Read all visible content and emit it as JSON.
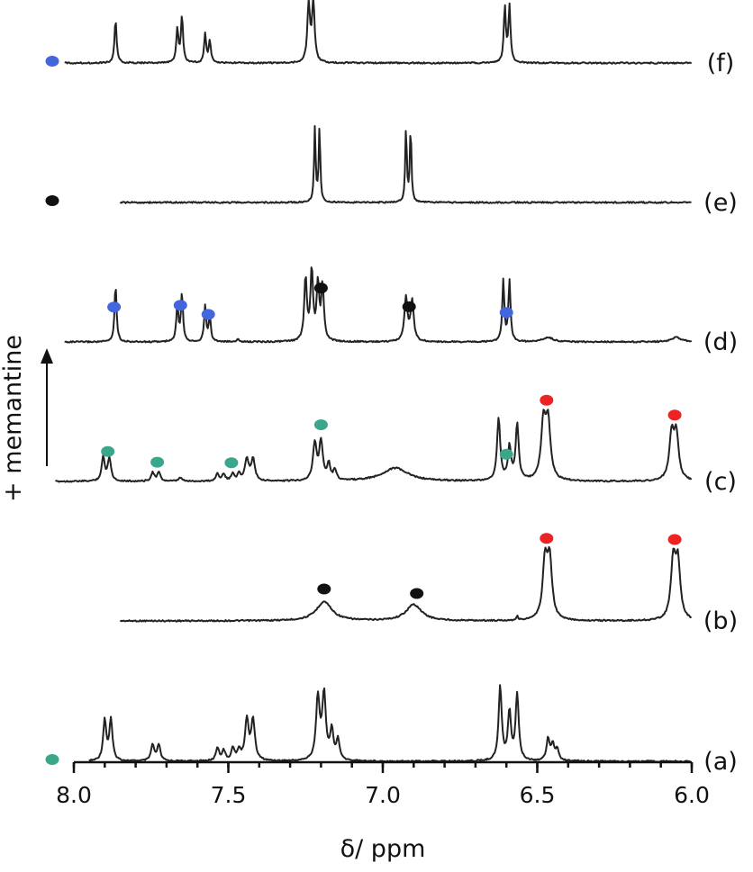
{
  "chart_data": {
    "type": "line",
    "xlabel": "δ/ ppm",
    "xlim": [
      8.0,
      6.0
    ],
    "x_reversed": true,
    "x_ticks": [
      "8.0",
      "7.5",
      "7.0",
      "6.5",
      "6.0"
    ],
    "x_tick_values": [
      8.0,
      7.5,
      7.0,
      6.5,
      6.0
    ],
    "side_annotation": "+ memantine",
    "colors": {
      "teal": "#3aa68a",
      "red": "#ee2222",
      "black": "#111111",
      "blue": "#4466dd"
    },
    "series": [
      {
        "name": "(a)",
        "x_start": 7.95,
        "legend_marker": "teal",
        "peaks": [
          {
            "x": 7.9,
            "h": 0.55,
            "w": 0.006
          },
          {
            "x": 7.88,
            "h": 0.55,
            "w": 0.006
          },
          {
            "x": 7.745,
            "h": 0.22,
            "w": 0.006
          },
          {
            "x": 7.725,
            "h": 0.22,
            "w": 0.006
          },
          {
            "x": 7.535,
            "h": 0.18,
            "w": 0.006
          },
          {
            "x": 7.515,
            "h": 0.14,
            "w": 0.006
          },
          {
            "x": 7.485,
            "h": 0.17,
            "w": 0.006
          },
          {
            "x": 7.465,
            "h": 0.14,
            "w": 0.006
          },
          {
            "x": 7.44,
            "h": 0.55,
            "w": 0.007
          },
          {
            "x": 7.42,
            "h": 0.55,
            "w": 0.007
          },
          {
            "x": 7.21,
            "h": 0.85,
            "w": 0.007
          },
          {
            "x": 7.19,
            "h": 0.88,
            "w": 0.007
          },
          {
            "x": 7.165,
            "h": 0.4,
            "w": 0.006
          },
          {
            "x": 7.145,
            "h": 0.28,
            "w": 0.006
          },
          {
            "x": 6.62,
            "h": 1.0,
            "w": 0.006
          },
          {
            "x": 6.59,
            "h": 0.65,
            "w": 0.006
          },
          {
            "x": 6.565,
            "h": 0.9,
            "w": 0.006
          },
          {
            "x": 6.465,
            "h": 0.3,
            "w": 0.006
          },
          {
            "x": 6.45,
            "h": 0.22,
            "w": 0.006
          },
          {
            "x": 6.435,
            "h": 0.15,
            "w": 0.006
          }
        ],
        "markers": []
      },
      {
        "name": "(b)",
        "x_start": 7.85,
        "legend_marker": "",
        "peaks": [
          {
            "x": 7.19,
            "h": 0.26,
            "w": 0.03
          },
          {
            "x": 6.9,
            "h": 0.22,
            "w": 0.03
          },
          {
            "x": 6.565,
            "h": 0.05,
            "w": 0.004
          },
          {
            "x": 6.475,
            "h": 0.78,
            "w": 0.009
          },
          {
            "x": 6.46,
            "h": 0.78,
            "w": 0.009
          },
          {
            "x": 6.06,
            "h": 0.78,
            "w": 0.009
          },
          {
            "x": 6.045,
            "h": 0.75,
            "w": 0.009
          }
        ],
        "markers": [
          {
            "x": 7.19,
            "color": "black"
          },
          {
            "x": 6.89,
            "color": "black"
          },
          {
            "x": 6.47,
            "color": "red"
          },
          {
            "x": 6.055,
            "color": "red"
          }
        ]
      },
      {
        "name": "(c)",
        "x_start": 8.06,
        "legend_marker": "",
        "peaks": [
          {
            "x": 7.905,
            "h": 0.32,
            "w": 0.006
          },
          {
            "x": 7.885,
            "h": 0.32,
            "w": 0.006
          },
          {
            "x": 7.745,
            "h": 0.12,
            "w": 0.006
          },
          {
            "x": 7.725,
            "h": 0.12,
            "w": 0.006
          },
          {
            "x": 7.655,
            "h": 0.05,
            "w": 0.006
          },
          {
            "x": 7.535,
            "h": 0.1,
            "w": 0.006
          },
          {
            "x": 7.515,
            "h": 0.09,
            "w": 0.006
          },
          {
            "x": 7.485,
            "h": 0.1,
            "w": 0.006
          },
          {
            "x": 7.465,
            "h": 0.09,
            "w": 0.006
          },
          {
            "x": 7.44,
            "h": 0.3,
            "w": 0.007
          },
          {
            "x": 7.42,
            "h": 0.3,
            "w": 0.007
          },
          {
            "x": 7.22,
            "h": 0.5,
            "w": 0.007
          },
          {
            "x": 7.2,
            "h": 0.52,
            "w": 0.007
          },
          {
            "x": 7.175,
            "h": 0.22,
            "w": 0.006
          },
          {
            "x": 7.155,
            "h": 0.14,
            "w": 0.006
          },
          {
            "x": 6.96,
            "h": 0.18,
            "w": 0.05
          },
          {
            "x": 6.625,
            "h": 0.85,
            "w": 0.006
          },
          {
            "x": 6.59,
            "h": 0.45,
            "w": 0.006
          },
          {
            "x": 6.565,
            "h": 0.75,
            "w": 0.006
          },
          {
            "x": 6.48,
            "h": 0.76,
            "w": 0.009
          },
          {
            "x": 6.465,
            "h": 0.76,
            "w": 0.009
          },
          {
            "x": 6.065,
            "h": 0.6,
            "w": 0.009
          },
          {
            "x": 6.05,
            "h": 0.6,
            "w": 0.009
          }
        ],
        "markers": [
          {
            "x": 7.89,
            "color": "teal"
          },
          {
            "x": 7.73,
            "color": "teal"
          },
          {
            "x": 7.49,
            "color": "teal"
          },
          {
            "x": 7.2,
            "color": "teal"
          },
          {
            "x": 6.6,
            "color": "teal"
          },
          {
            "x": 6.47,
            "color": "red"
          },
          {
            "x": 6.055,
            "color": "red"
          }
        ]
      },
      {
        "name": "(d)",
        "x_start": 8.03,
        "legend_marker": "",
        "peaks": [
          {
            "x": 7.865,
            "h": 0.77,
            "w": 0.004
          },
          {
            "x": 7.665,
            "h": 0.5,
            "w": 0.004
          },
          {
            "x": 7.65,
            "h": 0.65,
            "w": 0.004
          },
          {
            "x": 7.575,
            "h": 0.48,
            "w": 0.004
          },
          {
            "x": 7.56,
            "h": 0.34,
            "w": 0.004
          },
          {
            "x": 7.47,
            "h": 0.04,
            "w": 0.004
          },
          {
            "x": 7.25,
            "h": 0.85,
            "w": 0.005
          },
          {
            "x": 7.23,
            "h": 0.95,
            "w": 0.005
          },
          {
            "x": 7.21,
            "h": 0.75,
            "w": 0.005
          },
          {
            "x": 7.195,
            "h": 0.75,
            "w": 0.005
          },
          {
            "x": 6.925,
            "h": 0.6,
            "w": 0.006
          },
          {
            "x": 6.905,
            "h": 0.55,
            "w": 0.006
          },
          {
            "x": 6.61,
            "h": 0.82,
            "w": 0.004
          },
          {
            "x": 6.59,
            "h": 0.82,
            "w": 0.004
          },
          {
            "x": 6.465,
            "h": 0.06,
            "w": 0.02
          },
          {
            "x": 6.05,
            "h": 0.06,
            "w": 0.02
          }
        ],
        "markers": [
          {
            "x": 7.87,
            "color": "blue"
          },
          {
            "x": 7.655,
            "color": "blue"
          },
          {
            "x": 7.565,
            "color": "blue"
          },
          {
            "x": 7.2,
            "color": "black"
          },
          {
            "x": 6.915,
            "color": "black"
          },
          {
            "x": 6.6,
            "color": "blue"
          }
        ]
      },
      {
        "name": "(e)",
        "x_start": 7.85,
        "legend_marker": "black",
        "peaks": [
          {
            "x": 7.22,
            "h": 1.0,
            "w": 0.003
          },
          {
            "x": 7.205,
            "h": 1.0,
            "w": 0.003
          },
          {
            "x": 6.925,
            "h": 1.0,
            "w": 0.003
          },
          {
            "x": 6.91,
            "h": 1.0,
            "w": 0.003
          }
        ],
        "markers": []
      },
      {
        "name": "(f)",
        "x_start": 8.03,
        "legend_marker": "blue",
        "peaks": [
          {
            "x": 7.865,
            "h": 0.72,
            "w": 0.004
          },
          {
            "x": 7.665,
            "h": 0.57,
            "w": 0.004
          },
          {
            "x": 7.65,
            "h": 0.77,
            "w": 0.004
          },
          {
            "x": 7.575,
            "h": 0.47,
            "w": 0.004
          },
          {
            "x": 7.56,
            "h": 0.37,
            "w": 0.004
          },
          {
            "x": 7.24,
            "h": 0.97,
            "w": 0.005
          },
          {
            "x": 7.225,
            "h": 1.0,
            "w": 0.005
          },
          {
            "x": 6.605,
            "h": 0.92,
            "w": 0.004
          },
          {
            "x": 6.59,
            "h": 0.92,
            "w": 0.004
          }
        ],
        "markers": []
      }
    ]
  }
}
